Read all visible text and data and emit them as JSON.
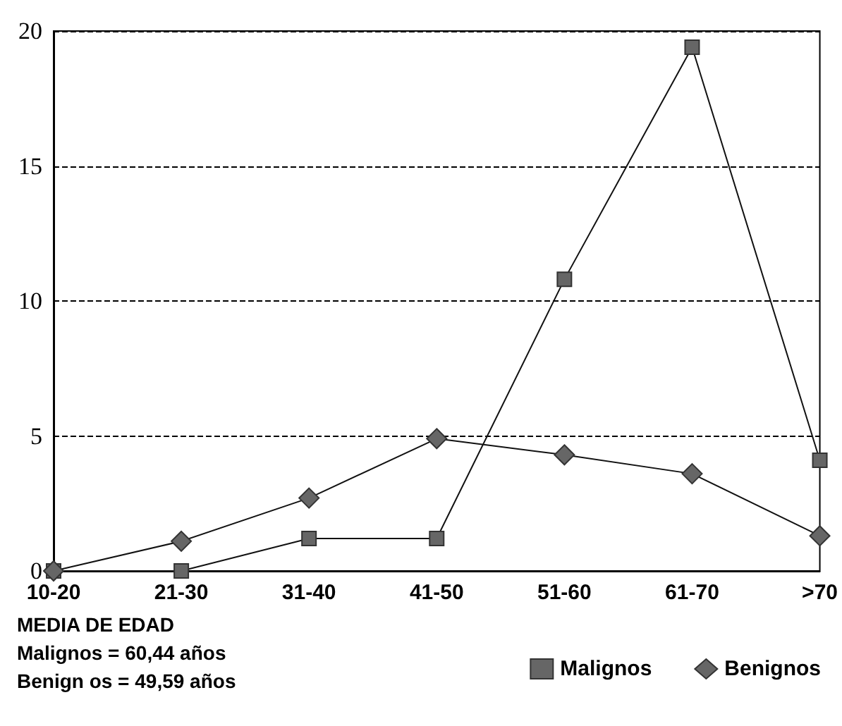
{
  "chart_data": {
    "type": "line",
    "categories": [
      "10-20",
      "21-30",
      "31-40",
      "41-50",
      "51-60",
      "61-70",
      ">70"
    ],
    "series": [
      {
        "name": "Malignos",
        "color": "#666666",
        "marker": "square",
        "values": [
          0,
          0,
          1.2,
          1.2,
          10.8,
          19.4,
          4.1
        ]
      },
      {
        "name": "Benignos",
        "color": "#666666",
        "marker": "diamond",
        "values": [
          0,
          1.1,
          2.7,
          4.9,
          4.3,
          3.6,
          1.3
        ]
      }
    ],
    "ylim": [
      0,
      20
    ],
    "yticks": [
      0,
      5,
      10,
      15,
      20
    ],
    "grid": "y",
    "legend": "bottom right",
    "annotations": [
      "MEDIA DE EDAD",
      "Malignos = 60,44 años",
      "Benign os = 49,59 años"
    ]
  }
}
